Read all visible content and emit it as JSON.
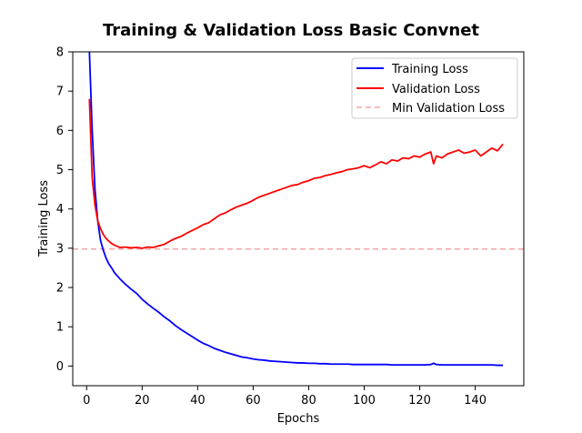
{
  "chart_data": {
    "type": "line",
    "title": "Training & Validation Loss Basic Convnet",
    "xlabel": "Epochs",
    "ylabel": "Training Loss",
    "xlim": [
      -5,
      157.5
    ],
    "ylim": [
      -0.5,
      8
    ],
    "xticks": [
      0,
      20,
      40,
      60,
      80,
      100,
      120,
      140
    ],
    "yticks": [
      0,
      1,
      2,
      3,
      4,
      5,
      6,
      7,
      8
    ],
    "grid": false,
    "legend_position": "top-right",
    "series": [
      {
        "name": "Training Loss",
        "color": "#0000ff",
        "x": [
          1,
          2,
          3,
          4,
          5,
          6,
          7,
          8,
          9,
          10,
          12,
          14,
          16,
          18,
          20,
          22,
          24,
          26,
          28,
          30,
          32,
          34,
          36,
          38,
          40,
          42,
          44,
          46,
          48,
          50,
          52,
          54,
          56,
          58,
          60,
          62,
          64,
          66,
          68,
          70,
          72,
          74,
          76,
          78,
          80,
          82,
          84,
          86,
          88,
          90,
          92,
          94,
          96,
          98,
          100,
          102,
          104,
          106,
          108,
          110,
          112,
          114,
          116,
          118,
          120,
          122,
          124,
          125,
          126,
          128,
          130,
          132,
          134,
          136,
          138,
          140,
          142,
          144,
          146,
          148,
          150
        ],
        "y": [
          8.0,
          6.0,
          4.5,
          3.7,
          3.2,
          2.95,
          2.75,
          2.6,
          2.5,
          2.38,
          2.22,
          2.08,
          1.96,
          1.85,
          1.7,
          1.58,
          1.47,
          1.37,
          1.25,
          1.15,
          1.03,
          0.93,
          0.84,
          0.75,
          0.66,
          0.58,
          0.52,
          0.45,
          0.4,
          0.35,
          0.31,
          0.27,
          0.23,
          0.21,
          0.18,
          0.16,
          0.15,
          0.13,
          0.12,
          0.11,
          0.1,
          0.09,
          0.08,
          0.08,
          0.07,
          0.07,
          0.06,
          0.06,
          0.05,
          0.05,
          0.05,
          0.05,
          0.04,
          0.04,
          0.04,
          0.04,
          0.04,
          0.04,
          0.04,
          0.03,
          0.03,
          0.03,
          0.03,
          0.03,
          0.03,
          0.03,
          0.04,
          0.07,
          0.04,
          0.03,
          0.03,
          0.03,
          0.03,
          0.03,
          0.03,
          0.03,
          0.03,
          0.03,
          0.03,
          0.02,
          0.02
        ]
      },
      {
        "name": "Validation Loss",
        "color": "#ff0000",
        "x": [
          1,
          2,
          3,
          4,
          5,
          6,
          7,
          8,
          9,
          10,
          12,
          14,
          16,
          18,
          20,
          22,
          24,
          26,
          28,
          30,
          32,
          34,
          36,
          38,
          40,
          42,
          44,
          46,
          48,
          50,
          52,
          54,
          56,
          58,
          60,
          62,
          64,
          66,
          68,
          70,
          72,
          74,
          76,
          78,
          80,
          82,
          84,
          86,
          88,
          90,
          92,
          94,
          96,
          98,
          100,
          102,
          104,
          106,
          108,
          110,
          112,
          114,
          116,
          118,
          120,
          122,
          124,
          125,
          126,
          128,
          130,
          132,
          134,
          136,
          138,
          140,
          142,
          144,
          146,
          148,
          150
        ],
        "y": [
          6.8,
          4.8,
          4.1,
          3.7,
          3.5,
          3.35,
          3.25,
          3.18,
          3.12,
          3.08,
          3.02,
          3.03,
          3.01,
          3.02,
          3.0,
          3.03,
          3.02,
          3.06,
          3.1,
          3.18,
          3.25,
          3.3,
          3.38,
          3.45,
          3.52,
          3.6,
          3.65,
          3.75,
          3.85,
          3.9,
          3.98,
          4.05,
          4.1,
          4.15,
          4.22,
          4.3,
          4.35,
          4.4,
          4.45,
          4.5,
          4.55,
          4.6,
          4.62,
          4.68,
          4.72,
          4.78,
          4.8,
          4.85,
          4.88,
          4.92,
          4.95,
          5.0,
          5.02,
          5.05,
          5.1,
          5.05,
          5.12,
          5.2,
          5.15,
          5.25,
          5.22,
          5.3,
          5.28,
          5.35,
          5.32,
          5.4,
          5.45,
          5.15,
          5.35,
          5.3,
          5.4,
          5.45,
          5.5,
          5.42,
          5.45,
          5.5,
          5.35,
          5.45,
          5.55,
          5.48,
          5.65
        ]
      }
    ],
    "reference_lines": [
      {
        "name": "Min Validation Loss",
        "orientation": "horizontal",
        "y": 2.98,
        "color": "#f4a6a6",
        "style": "dashed"
      }
    ]
  }
}
